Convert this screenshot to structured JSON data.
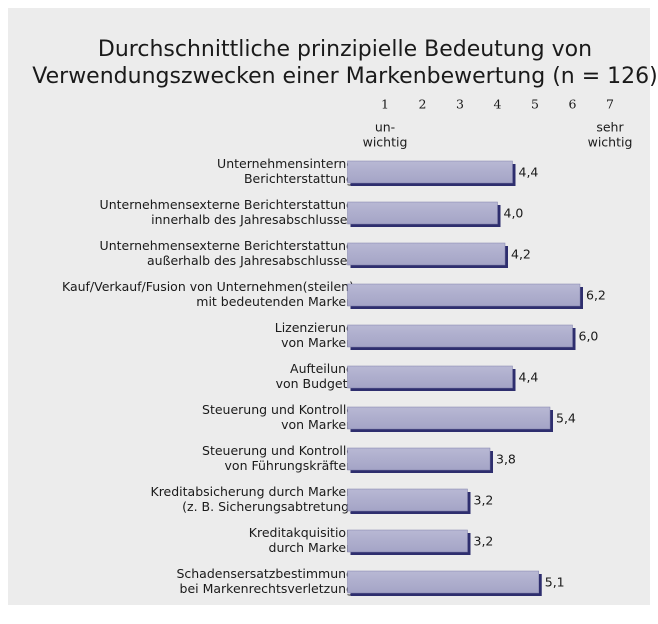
{
  "chart_data": {
    "type": "hbar",
    "title": [
      "Durchschnittliche prinzipielle Bedeutung von",
      "Verwendungszwecken einer Markenbewertung (n = 126)"
    ],
    "categories": [
      [
        "Unternehmensinterne",
        "Berichterstattung"
      ],
      [
        "Unternehmensexterne Berichterstattung",
        "innerhalb des Jahresabschlusses"
      ],
      [
        "Unternehmensexterne Berichterstattung",
        "außerhalb des Jahresabschlusses"
      ],
      [
        "Kauf/Verkauf/Fusion von Unternehmen(steilen)",
        "mit bedeutenden Marken"
      ],
      [
        "Lizenzierung",
        "von Marken"
      ],
      [
        "Aufteilung",
        "von Budgets"
      ],
      [
        "Steuerung und Kontrolle",
        "von Marken"
      ],
      [
        "Steuerung und Kontrolle",
        "von Führungskräften"
      ],
      [
        "Kreditabsicherung durch Marken",
        "(z. B. Sicherungsabtretung)"
      ],
      [
        "Kreditakquisition",
        "durch Marken"
      ],
      [
        "Schadensersatzbestimmung",
        "bei Markenrechtsverletzung"
      ]
    ],
    "values": [
      4.4,
      4.0,
      4.2,
      6.2,
      6.0,
      4.4,
      5.4,
      3.8,
      3.2,
      3.2,
      5.1
    ],
    "value_labels": [
      "4,4",
      "4,0",
      "4,2",
      "6,2",
      "6,0",
      "4,4",
      "5,4",
      "3,8",
      "3,2",
      "3,2",
      "5,1"
    ],
    "color": "#a4a4c6",
    "xlim": [
      0,
      7
    ],
    "xticks": [
      1,
      2,
      3,
      4,
      5,
      6,
      7
    ],
    "scale_labels": {
      "low": [
        "un-",
        "wichtig"
      ],
      "high": [
        "sehr",
        "wichtig"
      ]
    }
  }
}
